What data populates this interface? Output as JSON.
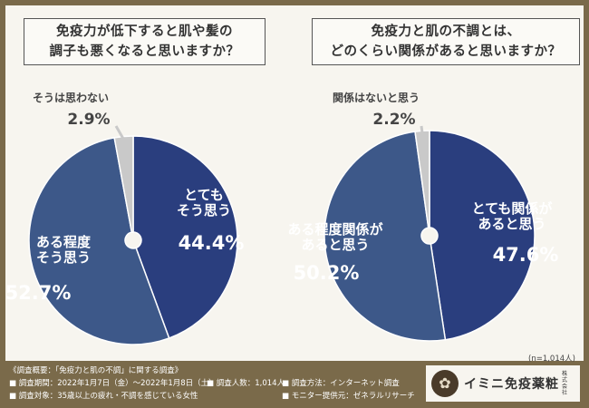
{
  "chart_data": [
    {
      "type": "pie",
      "title": "免疫力が低下すると肌や髪の調子も悪くなると思いますか？",
      "slices": [
        {
          "label": "とても\nそう思う",
          "value": 44.4
        },
        {
          "label": "ある程度\nそう思う",
          "value": 52.7
        },
        {
          "label": "そうは思わない",
          "value": 2.9
        }
      ]
    },
    {
      "type": "pie",
      "title": "免疫力と肌の不調とは、どのくらい関係があると思いますか？",
      "slices": [
        {
          "label": "とても関係が\nあると思う",
          "value": 47.6
        },
        {
          "label": "ある程度関係が\nあると思う",
          "value": 50.2
        },
        {
          "label": "関係はないと思う",
          "value": 2.2
        }
      ]
    }
  ],
  "q1": {
    "line1": "免疫力が低下すると肌や髪の",
    "line2": "調子も悪くなると思いますか？"
  },
  "q2": {
    "line1": "免疫力と肌の不調とは、",
    "line2": "どのくらい関係があると思いますか？"
  },
  "sample_note": "(n=1,014人)",
  "footer": {
    "title": "《調査概要：「免疫力と肌の不調」に関する調査》",
    "period": "■ 調査期間：2022年1月7日（金）～2022年1月8日（土）",
    "count": "■ 調査人数：1,014人",
    "method": "■ 調査方法：インターネット調査",
    "target": "■ 調査対象：35歳以上の疲れ・不調を感じている女性",
    "provider": "■ モニター提供元：ゼネラルリサーチ"
  },
  "brand": {
    "logo_glyph": "✿",
    "name": "イミニ免疫薬粧",
    "sub": "株式会社"
  },
  "colors": {
    "dark": "#2a3e7e",
    "medium": "#3d5889",
    "light": "#c9c9c9",
    "frame": "#7a6a4a",
    "background": "#f7f5ef"
  }
}
